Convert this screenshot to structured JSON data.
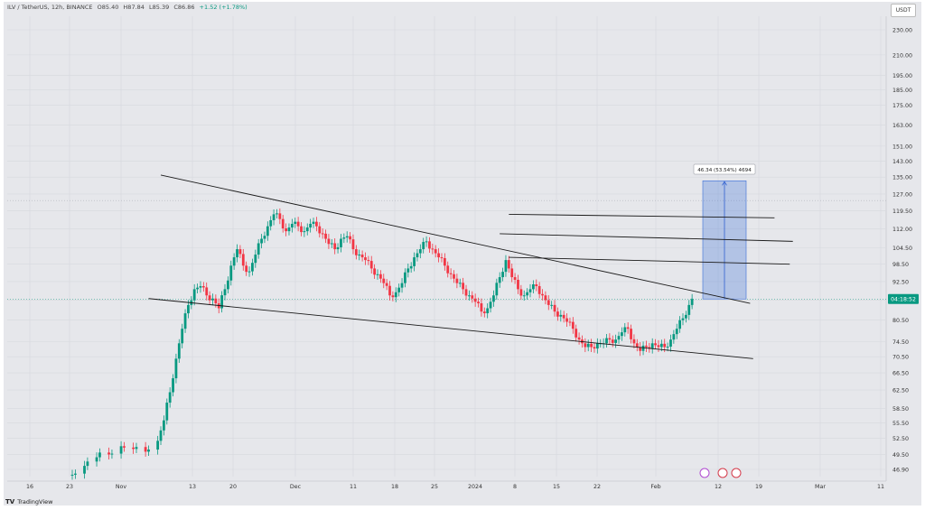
{
  "header": {
    "symbol": "ILV / TetherUS, 12h, BINANCE",
    "open": "O85.40",
    "high": "H87.84",
    "low": "L85.39",
    "close": "C86.86",
    "change": "+1.52 (+1.78%)"
  },
  "currency_button": "USDT",
  "price_badge": "04:18:52",
  "measure_label": "46.34 (53.54%) 4694",
  "footer": {
    "logo": "TV",
    "brand": "TradingView"
  },
  "colors": {
    "up": "#089981",
    "down": "#f23645",
    "measure": "#3b6fd8",
    "background": "#e6e7eb"
  },
  "chart_data": {
    "type": "candlestick",
    "y_axis": {
      "scale": "log",
      "ticks": [
        "230.00",
        "210.00",
        "195.00",
        "185.00",
        "175.00",
        "163.00",
        "151.00",
        "143.00",
        "135.00",
        "127.00",
        "119.50",
        "112.00",
        "104.50",
        "98.50",
        "92.50",
        "86.50",
        "80.50",
        "74.50",
        "70.50",
        "66.50",
        "62.50",
        "58.50",
        "55.50",
        "52.50",
        "49.50",
        "46.90"
      ]
    },
    "x_axis": {
      "ticks": [
        "16",
        "23",
        "Nov",
        "13",
        "20",
        "Dec",
        "11",
        "18",
        "25",
        "2024",
        "8",
        "15",
        "22",
        "Feb",
        "12",
        "19",
        "Mar",
        "11"
      ]
    },
    "current_price": 86.86,
    "series_path": [
      [
        0,
        46
      ],
      [
        4,
        47.5
      ],
      [
        8,
        49
      ],
      [
        12,
        49.5
      ],
      [
        16,
        51
      ],
      [
        20,
        50.5
      ],
      [
        24,
        50
      ],
      [
        28,
        52
      ],
      [
        30,
        56
      ],
      [
        32,
        62
      ],
      [
        34,
        70
      ],
      [
        36,
        78
      ],
      [
        38,
        85
      ],
      [
        40,
        90
      ],
      [
        42,
        91
      ],
      [
        44,
        88
      ],
      [
        46,
        87
      ],
      [
        48,
        84
      ],
      [
        50,
        90
      ],
      [
        52,
        98
      ],
      [
        54,
        104
      ],
      [
        56,
        98
      ],
      [
        58,
        96
      ],
      [
        60,
        102
      ],
      [
        62,
        108
      ],
      [
        64,
        113
      ],
      [
        66,
        118
      ],
      [
        68,
        116
      ],
      [
        70,
        111
      ],
      [
        72,
        114
      ],
      [
        74,
        113
      ],
      [
        76,
        111
      ],
      [
        78,
        114
      ],
      [
        80,
        113
      ],
      [
        82,
        110
      ],
      [
        84,
        106
      ],
      [
        86,
        104
      ],
      [
        88,
        108
      ],
      [
        90,
        109
      ],
      [
        92,
        104
      ],
      [
        94,
        102
      ],
      [
        96,
        100
      ],
      [
        98,
        97
      ],
      [
        100,
        95
      ],
      [
        102,
        92
      ],
      [
        104,
        88
      ],
      [
        106,
        89
      ],
      [
        108,
        92
      ],
      [
        110,
        97
      ],
      [
        112,
        101
      ],
      [
        114,
        104
      ],
      [
        116,
        107
      ],
      [
        118,
        104
      ],
      [
        120,
        101
      ],
      [
        122,
        98
      ],
      [
        124,
        95
      ],
      [
        126,
        92
      ],
      [
        128,
        90
      ],
      [
        130,
        88
      ],
      [
        132,
        86
      ],
      [
        134,
        83
      ],
      [
        136,
        84
      ],
      [
        138,
        88
      ],
      [
        140,
        94
      ],
      [
        142,
        100
      ],
      [
        144,
        94
      ],
      [
        146,
        90
      ],
      [
        148,
        88
      ],
      [
        150,
        90
      ],
      [
        152,
        91
      ],
      [
        154,
        88
      ],
      [
        156,
        85
      ],
      [
        158,
        83
      ],
      [
        160,
        82
      ],
      [
        162,
        80
      ],
      [
        164,
        78
      ],
      [
        166,
        75
      ],
      [
        168,
        73
      ],
      [
        170,
        73
      ],
      [
        172,
        74
      ],
      [
        174,
        74
      ],
      [
        176,
        75
      ],
      [
        178,
        75
      ],
      [
        180,
        77
      ],
      [
        182,
        78
      ],
      [
        184,
        74
      ],
      [
        186,
        72
      ],
      [
        188,
        73
      ],
      [
        190,
        74
      ],
      [
        192,
        73
      ],
      [
        194,
        73
      ],
      [
        196,
        75
      ],
      [
        198,
        78
      ],
      [
        200,
        81
      ],
      [
        202,
        85
      ],
      [
        203,
        86.86
      ]
    ],
    "price_range_measure": {
      "from": 86.86,
      "to": 133.2,
      "change": "46.34 (53.54%) 4694"
    },
    "trendlines": [
      {
        "name": "descending resistance",
        "from": [
          29,
          136
        ],
        "to": [
          222,
          85.5
        ]
      },
      {
        "name": "descending support",
        "from": [
          25,
          87
        ],
        "to": [
          223,
          70
        ]
      },
      {
        "name": "horizontal level 1",
        "from": [
          143,
          118
        ],
        "to": [
          230,
          116.5
        ]
      },
      {
        "name": "horizontal level 2",
        "from": [
          140,
          110
        ],
        "to": [
          236,
          107
        ]
      },
      {
        "name": "horizontal level 3",
        "from": [
          143,
          101
        ],
        "to": [
          235,
          98.5
        ]
      }
    ]
  }
}
